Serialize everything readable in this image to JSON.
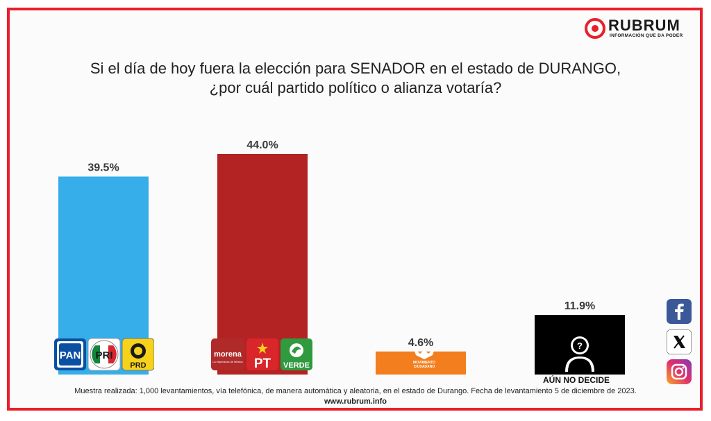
{
  "logo": {
    "brand": "RUBRUM",
    "tagline": "INFORMACIÓN QUE DA PODER",
    "accent": "#e8202a"
  },
  "title_line1": "Si el día de hoy fuera la elección para SENADOR en el estado de DURANGO,",
  "title_line2": "¿por cuál partido político o alianza votaría?",
  "chart_data": {
    "type": "bar",
    "title": "Si el día de hoy fuera la elección para SENADOR en el estado de DURANGO, ¿por cuál partido político o alianza votaría?",
    "xlabel": "",
    "ylabel": "",
    "categories": [
      "PAN-PRI-PRD",
      "Morena-PT-Verde",
      "Movimiento Ciudadano",
      "Aún no decide"
    ],
    "values": [
      39.5,
      44.0,
      4.6,
      11.9
    ],
    "value_labels": [
      "39.5%",
      "44.0%",
      "4.6%",
      "11.9%"
    ],
    "colors": [
      "#35aeea",
      "#b42323",
      "#f27e1e",
      "#000000"
    ],
    "ylim": [
      0,
      44.0
    ],
    "grid": false,
    "legend": "none"
  },
  "party_logos": {
    "pan": "PAN",
    "pri": "PRI",
    "prd": "PRD",
    "morena": "morena",
    "morena_sub": "La esperanza de México",
    "pt": "PT",
    "verde": "VERDE",
    "mc_line1": "MOVIMIENTO",
    "mc_line2": "CIUDADANO"
  },
  "undecided_label": "AÚN NO DECIDE",
  "footer_note": "Muestra realizada: 1,000 levantamientos, vía telefónica, de manera automática y aleatoria, en el estado de Durango. Fecha de levantamiento 5 de diciembre de 2023.",
  "footer_url": "www.rubrum.info",
  "social": [
    "facebook-icon",
    "x-icon",
    "instagram-icon"
  ]
}
